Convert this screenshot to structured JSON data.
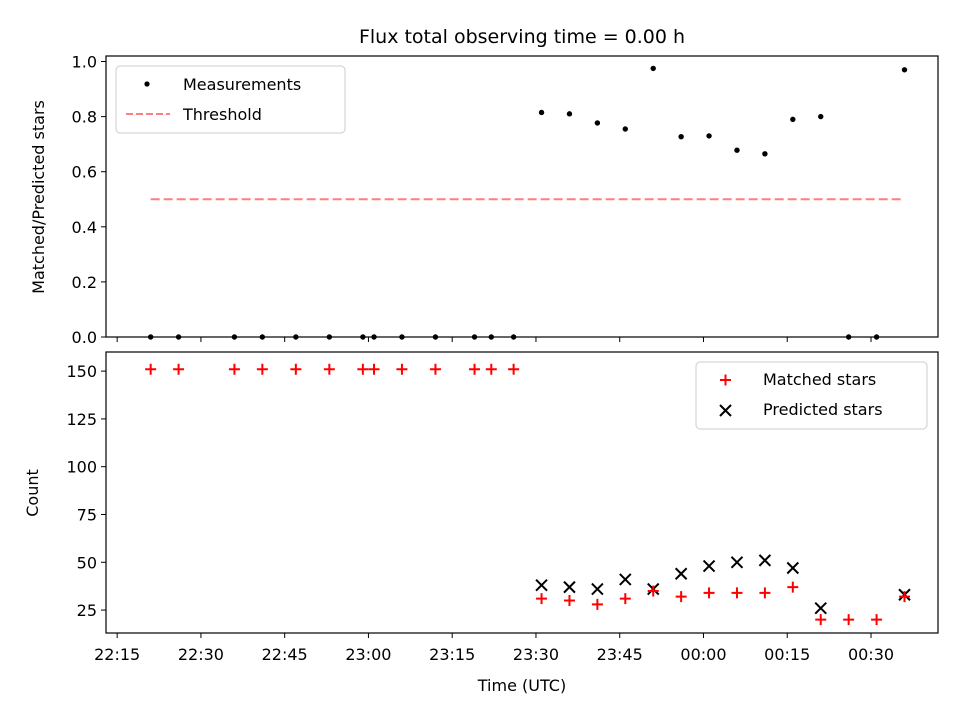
{
  "chart_data": [
    {
      "type": "scatter",
      "title": "Flux total observing time = 0.00 h",
      "xlabel": "",
      "ylabel": "Matched/Predicted stars",
      "ylim": [
        0,
        1.02
      ],
      "y_ticks": [
        "0.0",
        "0.2",
        "0.4",
        "0.6",
        "0.8",
        "1.0"
      ],
      "x": [
        "22:21",
        "22:26",
        "22:36",
        "22:41",
        "22:47",
        "22:53",
        "22:59",
        "23:01",
        "23:06",
        "23:12",
        "23:19",
        "23:22",
        "23:26",
        "23:31",
        "23:36",
        "23:41",
        "23:46",
        "23:51",
        "23:56",
        "00:01",
        "00:06",
        "00:11",
        "00:16",
        "00:21",
        "00:26",
        "00:31",
        "00:36"
      ],
      "series": [
        {
          "name": "Measurements",
          "marker": "dot",
          "color": "#000000",
          "values": [
            0,
            0,
            0,
            0,
            0,
            0,
            0,
            0,
            0,
            0,
            0,
            0,
            0,
            0.815,
            0.81,
            0.777,
            0.755,
            0.975,
            0.727,
            0.73,
            0.678,
            0.665,
            0.79,
            0.8,
            0,
            0,
            0.97
          ]
        },
        {
          "name": "Threshold",
          "marker": "dashed-line",
          "color": "#ff7f7f",
          "x_range": [
            "22:21",
            "00:36"
          ],
          "value": 0.5
        }
      ],
      "legend_position": "upper-left"
    },
    {
      "type": "scatter",
      "xlabel": "Time (UTC)",
      "ylabel": "Count",
      "ylim": [
        13,
        160
      ],
      "y_ticks": [
        "25",
        "50",
        "75",
        "100",
        "125",
        "150"
      ],
      "x_ticks": [
        "22:15",
        "22:30",
        "22:45",
        "23:00",
        "23:15",
        "23:30",
        "23:45",
        "00:00",
        "00:15",
        "00:30"
      ],
      "x": [
        "22:21",
        "22:26",
        "22:36",
        "22:41",
        "22:47",
        "22:53",
        "22:59",
        "23:01",
        "23:06",
        "23:12",
        "23:19",
        "23:22",
        "23:26",
        "23:31",
        "23:36",
        "23:41",
        "23:46",
        "23:51",
        "23:56",
        "00:01",
        "00:06",
        "00:11",
        "00:16",
        "00:21",
        "00:26",
        "00:31",
        "00:36"
      ],
      "series": [
        {
          "name": "Matched stars",
          "marker": "plus",
          "color": "#ff0000",
          "values": [
            151,
            151,
            151,
            151,
            151,
            151,
            151,
            151,
            151,
            151,
            151,
            151,
            151,
            31,
            30,
            28,
            31,
            35,
            32,
            34,
            34,
            34,
            37,
            20,
            20,
            20,
            32
          ]
        },
        {
          "name": "Predicted stars",
          "marker": "x",
          "color": "#000000",
          "x": [
            "23:31",
            "23:36",
            "23:41",
            "23:46",
            "23:51",
            "23:56",
            "00:01",
            "00:06",
            "00:11",
            "00:16",
            "00:21",
            "00:36"
          ],
          "values": [
            38,
            37,
            36,
            41,
            36,
            44,
            48,
            50,
            51,
            47,
            26,
            33
          ]
        }
      ],
      "legend_position": "upper-right"
    }
  ]
}
